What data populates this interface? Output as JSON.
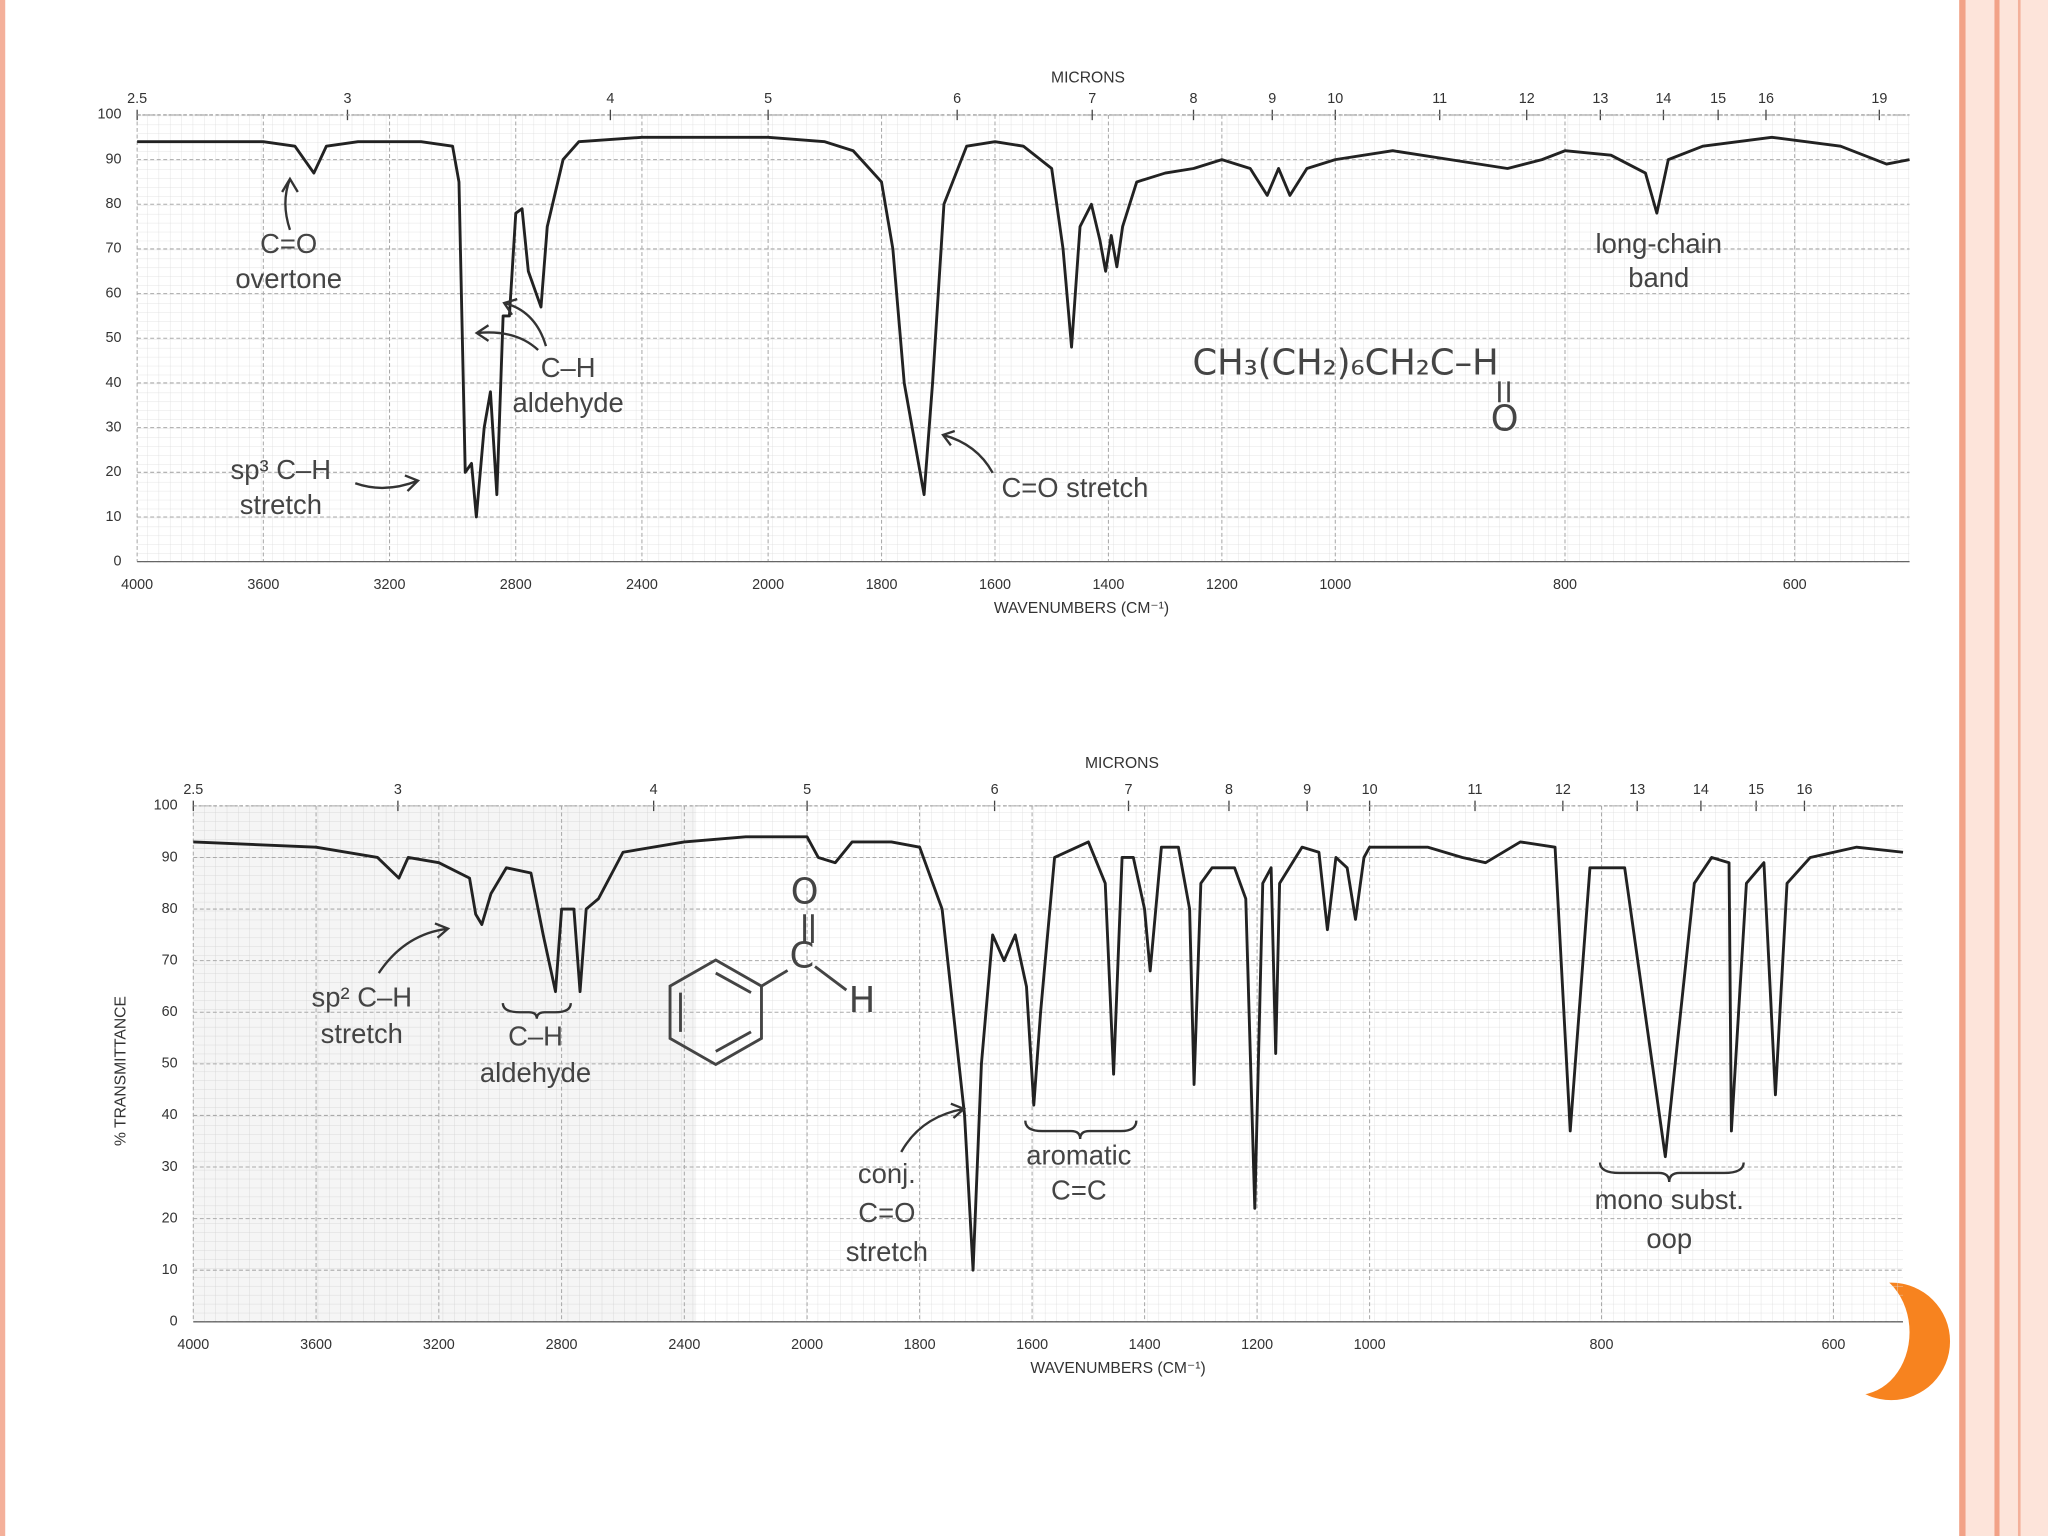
{
  "chart_data": [
    {
      "type": "line",
      "x2label": "MICRONS",
      "xlabel": "WAVENUMBERS (CM⁻¹)",
      "xlim": [
        4000,
        500
      ],
      "ylim": [
        0,
        100
      ],
      "xticks": [
        4000,
        3600,
        3200,
        2800,
        2400,
        2000,
        1800,
        1600,
        1400,
        1200,
        1000,
        800,
        600
      ],
      "yticks": [
        0,
        10,
        20,
        30,
        40,
        50,
        60,
        70,
        80,
        90,
        100
      ],
      "x2ticks": [
        2.5,
        3,
        4,
        5,
        6,
        7,
        8,
        9,
        10,
        11,
        12,
        13,
        14,
        15,
        16,
        19
      ],
      "grid": true,
      "color": "#222",
      "x": [
        4000,
        3800,
        3600,
        3500,
        3440,
        3400,
        3300,
        3100,
        3000,
        2980,
        2960,
        2940,
        2925,
        2900,
        2880,
        2860,
        2840,
        2820,
        2800,
        2780,
        2760,
        2720,
        2700,
        2650,
        2600,
        2400,
        2200,
        2000,
        1900,
        1850,
        1800,
        1780,
        1760,
        1725,
        1710,
        1690,
        1650,
        1600,
        1550,
        1500,
        1480,
        1465,
        1450,
        1430,
        1415,
        1405,
        1395,
        1385,
        1375,
        1350,
        1300,
        1250,
        1200,
        1150,
        1120,
        1100,
        1080,
        1050,
        1000,
        950,
        900,
        850,
        820,
        800,
        760,
        730,
        720,
        710,
        680,
        620,
        560,
        520,
        500
      ],
      "values": [
        94,
        94,
        94,
        93,
        87,
        93,
        94,
        94,
        93,
        85,
        20,
        22,
        10,
        30,
        38,
        15,
        55,
        55,
        78,
        79,
        65,
        57,
        75,
        90,
        94,
        95,
        95,
        95,
        94,
        92,
        85,
        70,
        40,
        15,
        40,
        80,
        93,
        94,
        93,
        88,
        70,
        48,
        75,
        80,
        72,
        65,
        73,
        66,
        75,
        85,
        87,
        88,
        90,
        88,
        82,
        88,
        82,
        88,
        90,
        92,
        90,
        88,
        90,
        92,
        91,
        87,
        78,
        90,
        93,
        95,
        93,
        89,
        90
      ],
      "annotations": [
        "C=O",
        "overtone",
        "sp³ C–H",
        "stretch",
        "C–H",
        "aldehyde",
        "C=O stretch",
        "long-chain",
        "band"
      ],
      "structure": [
        "CH₃(CH₂)₆CH₂C–H",
        "O"
      ]
    },
    {
      "type": "line",
      "x2label": "MICRONS",
      "xlabel": "WAVENUMBERS (CM⁻¹)",
      "ylabel": "% TRANSMITTANCE",
      "xlim": [
        4000,
        540
      ],
      "ylim": [
        0,
        100
      ],
      "xticks": [
        4000,
        3600,
        3200,
        2800,
        2400,
        2000,
        1800,
        1600,
        1400,
        1200,
        1000,
        800,
        600
      ],
      "yticks": [
        0,
        10,
        20,
        30,
        40,
        50,
        60,
        70,
        80,
        90,
        100
      ],
      "x2ticks": [
        2.5,
        3,
        4,
        5,
        6,
        7,
        8,
        9,
        10,
        11,
        12,
        13,
        14,
        15,
        16
      ],
      "grid": true,
      "color": "#222",
      "x": [
        4000,
        3600,
        3400,
        3330,
        3300,
        3200,
        3100,
        3080,
        3060,
        3030,
        2980,
        2900,
        2860,
        2820,
        2800,
        2760,
        2740,
        2720,
        2680,
        2600,
        2400,
        2200,
        2000,
        1980,
        1950,
        1920,
        1850,
        1800,
        1760,
        1720,
        1705,
        1690,
        1670,
        1650,
        1630,
        1610,
        1597,
        1585,
        1560,
        1500,
        1470,
        1455,
        1440,
        1420,
        1400,
        1390,
        1370,
        1340,
        1320,
        1312,
        1300,
        1280,
        1240,
        1220,
        1204,
        1190,
        1175,
        1167,
        1160,
        1120,
        1090,
        1075,
        1060,
        1040,
        1025,
        1010,
        1000,
        950,
        920,
        900,
        870,
        840,
        827,
        810,
        780,
        745,
        720,
        705,
        690,
        688,
        675,
        660,
        650,
        640,
        620,
        580,
        540
      ],
      "values": [
        93,
        92,
        90,
        86,
        90,
        89,
        86,
        79,
        77,
        83,
        88,
        87,
        75,
        64,
        80,
        80,
        64,
        80,
        82,
        91,
        93,
        94,
        94,
        90,
        89,
        93,
        93,
        92,
        80,
        40,
        10,
        50,
        75,
        70,
        75,
        65,
        42,
        60,
        90,
        93,
        85,
        48,
        90,
        90,
        80,
        68,
        92,
        92,
        80,
        46,
        85,
        88,
        88,
        82,
        22,
        85,
        88,
        52,
        85,
        92,
        91,
        76,
        90,
        88,
        78,
        90,
        92,
        92,
        90,
        89,
        93,
        92,
        37,
        88,
        88,
        32,
        85,
        90,
        89,
        37,
        85,
        89,
        44,
        85,
        90,
        92,
        91
      ],
      "annotations": [
        "sp² C–H",
        "stretch",
        "C–H",
        "aldehyde",
        "conj.",
        "C=O",
        "stretch",
        "aromatic",
        "C=C",
        "mono subst.",
        "oop"
      ],
      "structure": [
        "O",
        "C",
        "H"
      ]
    }
  ]
}
